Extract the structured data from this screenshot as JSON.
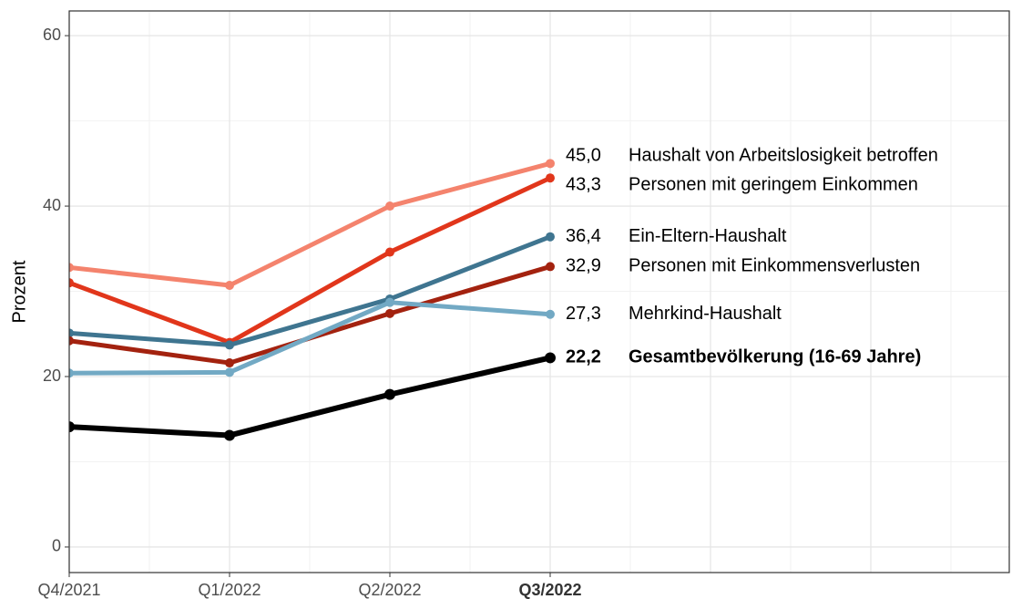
{
  "chart_data": {
    "type": "line",
    "ylabel": "Prozent",
    "categories": [
      "Q4/2021",
      "Q1/2022",
      "Q2/2022",
      "Q3/2022"
    ],
    "highlight_category": 3,
    "ylim": [
      -3,
      62.9
    ],
    "yticks": [
      0,
      20,
      40,
      60
    ],
    "grid": true,
    "series": [
      {
        "name": "Haushalt von Arbeitslosigkeit betroffen",
        "color": "#f4836d",
        "values": [
          32.8,
          30.7,
          40.0,
          45.0
        ],
        "value_labels": [
          null,
          null,
          null,
          "45,0"
        ]
      },
      {
        "name": "Personen mit geringem Einkommen",
        "color": "#e1361b",
        "values": [
          31.0,
          24.0,
          34.6,
          43.3
        ],
        "value_labels": [
          null,
          null,
          null,
          "43,3"
        ]
      },
      {
        "name": "Ein-Eltern-Haushalt",
        "color": "#3f7590",
        "values": [
          25.1,
          23.7,
          29.1,
          36.4
        ],
        "value_labels": [
          null,
          null,
          null,
          "36,4"
        ]
      },
      {
        "name": "Personen mit Einkommensverlusten",
        "color": "#a3220f",
        "values": [
          24.2,
          21.6,
          27.4,
          32.9
        ],
        "value_labels": [
          null,
          null,
          null,
          "32,9"
        ]
      },
      {
        "name": "Mehrkind-Haushalt",
        "color": "#72a9c4",
        "values": [
          20.4,
          20.5,
          28.7,
          27.3
        ],
        "value_labels": [
          null,
          null,
          null,
          "27,3"
        ]
      },
      {
        "name": "Gesamtbevölkerung (16-69 Jahre)",
        "color": "#000000",
        "bold": true,
        "values": [
          14.1,
          13.1,
          17.9,
          22.2
        ],
        "value_labels": [
          null,
          null,
          null,
          "22,2"
        ]
      }
    ]
  }
}
